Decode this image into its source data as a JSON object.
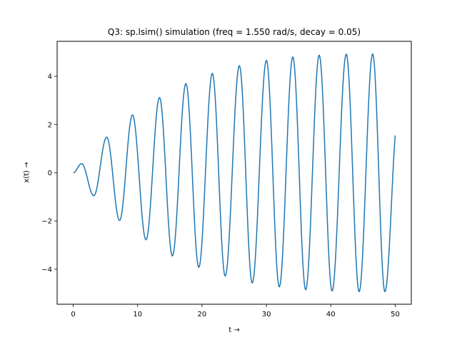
{
  "chart_data": {
    "type": "line",
    "title": "Q3: sp.lsim() simulation (freq = 1.550 rad/s, decay = 0.05)",
    "xlabel": "t →",
    "ylabel": "x(t) →",
    "xlim": [
      -2.5,
      52.5
    ],
    "ylim": [
      -5.45,
      5.45
    ],
    "xticks": [
      0,
      10,
      20,
      30,
      40,
      50
    ],
    "xtick_labels": [
      "0",
      "10",
      "20",
      "30",
      "40",
      "50"
    ],
    "yticks": [
      -4,
      -2,
      0,
      2,
      4
    ],
    "ytick_labels": [
      "−4",
      "−2",
      "0",
      "2",
      "4"
    ],
    "grid": false,
    "legend": false,
    "series": [
      {
        "color": "#1f77b4",
        "t_range": [
          0,
          50
        ],
        "omega": 1.55,
        "decay": 0.05,
        "amplitude": 5.0,
        "extrema_t": [
          1.3,
          3.2,
          5.2,
          7.2,
          9.2,
          11.3,
          13.4,
          15.4,
          17.5,
          19.5,
          21.6,
          23.6,
          25.8,
          27.8,
          30.0,
          32.0,
          34.1,
          36.1,
          38.2,
          40.2,
          42.4,
          44.4,
          46.5,
          48.4
        ],
        "extrema_x": [
          0.38,
          -0.95,
          1.48,
          -1.98,
          2.4,
          -2.78,
          3.12,
          -3.45,
          3.7,
          -3.92,
          4.12,
          -4.28,
          4.44,
          -4.57,
          4.66,
          -4.73,
          4.8,
          -4.85,
          4.88,
          -4.9,
          4.92,
          -4.93,
          4.93,
          -4.93
        ],
        "end_point": [
          50,
          1.55
        ]
      }
    ]
  }
}
